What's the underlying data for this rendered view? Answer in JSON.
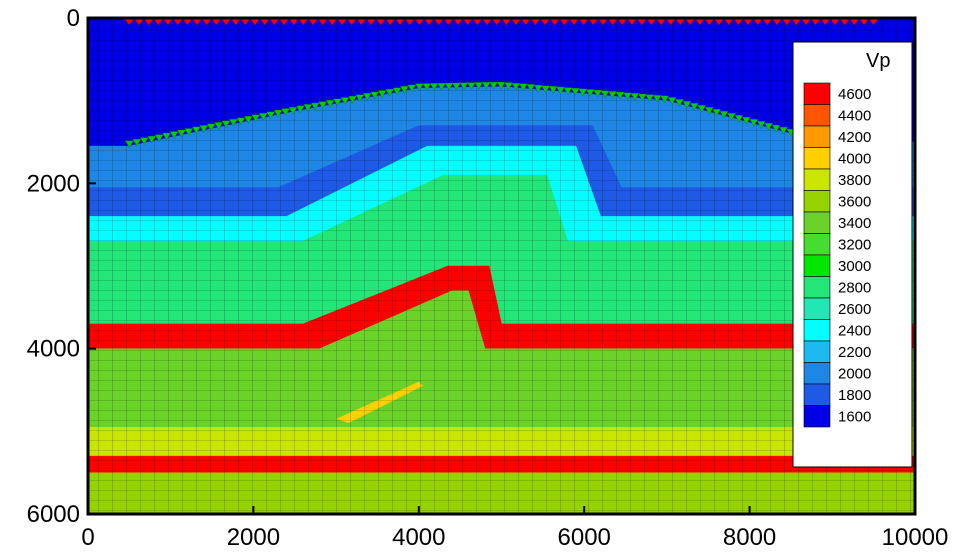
{
  "chart_data": {
    "type": "heatmap",
    "title": "",
    "xlabel": "",
    "ylabel": "",
    "xlim": [
      0,
      10000
    ],
    "ylim": [
      0,
      6000
    ],
    "y_inverted": true,
    "x_ticks": [
      0,
      2000,
      4000,
      6000,
      8000,
      10000
    ],
    "y_ticks": [
      0,
      2000,
      4000,
      6000
    ],
    "x_tick_labels": [
      "0",
      "2000",
      "4000",
      "6000",
      "8000",
      "10000"
    ],
    "y_tick_labels": [
      "0",
      "2000",
      "4000",
      "6000"
    ],
    "grid": "mesh",
    "legend": {
      "title": "Vp",
      "placement": "right",
      "levels": [
        {
          "label": "4600",
          "value": 4600,
          "color": "#ff0000"
        },
        {
          "label": "4400",
          "value": 4400,
          "color": "#ff5500"
        },
        {
          "label": "4200",
          "value": 4200,
          "color": "#ff9900"
        },
        {
          "label": "4000",
          "value": 4000,
          "color": "#ffd000"
        },
        {
          "label": "3800",
          "value": 3800,
          "color": "#c8e600"
        },
        {
          "label": "3600",
          "value": 3600,
          "color": "#96d200"
        },
        {
          "label": "3400",
          "value": 3400,
          "color": "#6ad228"
        },
        {
          "label": "3200",
          "value": 3200,
          "color": "#46dc32"
        },
        {
          "label": "3000",
          "value": 3000,
          "color": "#00e600"
        },
        {
          "label": "2800",
          "value": 2800,
          "color": "#22e678"
        },
        {
          "label": "2600",
          "value": 2600,
          "color": "#22e6b4"
        },
        {
          "label": "2400",
          "value": 2400,
          "color": "#00ffff"
        },
        {
          "label": "2200",
          "value": 2200,
          "color": "#1eb9f0"
        },
        {
          "label": "2000",
          "value": 2000,
          "color": "#1e87e6"
        },
        {
          "label": "1800",
          "value": 1800,
          "color": "#1e5ae6"
        },
        {
          "label": "1600",
          "value": 1600,
          "color": "#0000e6"
        }
      ]
    },
    "layers": [
      {
        "vp": 1600,
        "points": [
          [
            0,
            0
          ],
          [
            10000,
            0
          ],
          [
            10000,
            1500
          ],
          [
            8500,
            1400
          ],
          [
            7000,
            1000
          ],
          [
            5000,
            830
          ],
          [
            4000,
            850
          ],
          [
            2400,
            1150
          ],
          [
            500,
            1550
          ],
          [
            0,
            1550
          ]
        ]
      },
      {
        "vp": 2000,
        "points": [
          [
            0,
            1550
          ],
          [
            500,
            1550
          ],
          [
            2400,
            1150
          ],
          [
            4000,
            850
          ],
          [
            5000,
            830
          ],
          [
            7000,
            1000
          ],
          [
            8500,
            1400
          ],
          [
            10000,
            1500
          ],
          [
            10000,
            2050
          ],
          [
            6450,
            2050
          ],
          [
            6100,
            1300
          ],
          [
            4000,
            1300
          ],
          [
            2300,
            2050
          ],
          [
            0,
            2050
          ]
        ]
      },
      {
        "vp": 1800,
        "points": [
          [
            0,
            2050
          ],
          [
            2300,
            2050
          ],
          [
            4000,
            1300
          ],
          [
            6100,
            1300
          ],
          [
            6450,
            2050
          ],
          [
            10000,
            2050
          ],
          [
            10000,
            2400
          ],
          [
            6200,
            2400
          ],
          [
            5900,
            1550
          ],
          [
            4100,
            1550
          ],
          [
            2400,
            2400
          ],
          [
            0,
            2400
          ]
        ]
      },
      {
        "vp": 2400,
        "points": [
          [
            0,
            2400
          ],
          [
            2400,
            2400
          ],
          [
            4100,
            1550
          ],
          [
            5900,
            1550
          ],
          [
            6200,
            2400
          ],
          [
            10000,
            2400
          ],
          [
            10000,
            2700
          ],
          [
            5800,
            2700
          ],
          [
            5550,
            1900
          ],
          [
            4300,
            1900
          ],
          [
            2600,
            2700
          ],
          [
            0,
            2700
          ]
        ]
      },
      {
        "vp": 2800,
        "points": [
          [
            0,
            2700
          ],
          [
            2600,
            2700
          ],
          [
            4300,
            1900
          ],
          [
            5550,
            1900
          ],
          [
            5800,
            2700
          ],
          [
            10000,
            2700
          ],
          [
            10000,
            3700
          ],
          [
            5000,
            3700
          ],
          [
            4850,
            3000
          ],
          [
            4350,
            3000
          ],
          [
            2600,
            3700
          ],
          [
            0,
            3700
          ]
        ]
      },
      {
        "vp": 4600,
        "points": [
          [
            0,
            3700
          ],
          [
            2600,
            3700
          ],
          [
            4350,
            3000
          ],
          [
            4850,
            3000
          ],
          [
            5000,
            3700
          ],
          [
            10000,
            3700
          ],
          [
            10000,
            4000
          ],
          [
            4800,
            4000
          ],
          [
            4600,
            3300
          ],
          [
            4400,
            3300
          ],
          [
            2800,
            4000
          ],
          [
            0,
            4000
          ]
        ]
      },
      {
        "vp": 3400,
        "points": [
          [
            0,
            4000
          ],
          [
            2800,
            4000
          ],
          [
            4400,
            3300
          ],
          [
            4600,
            3300
          ],
          [
            4800,
            4000
          ],
          [
            10000,
            4000
          ],
          [
            10000,
            4950
          ],
          [
            0,
            4950
          ]
        ]
      },
      {
        "vp": 3800,
        "points": [
          [
            0,
            4950
          ],
          [
            10000,
            4950
          ],
          [
            10000,
            5300
          ],
          [
            0,
            5300
          ]
        ]
      },
      {
        "vp": 4600,
        "points": [
          [
            0,
            5300
          ],
          [
            10000,
            5300
          ],
          [
            10000,
            5500
          ],
          [
            0,
            5500
          ]
        ]
      },
      {
        "vp": 3600,
        "points": [
          [
            0,
            5500
          ],
          [
            10000,
            5500
          ],
          [
            10000,
            6000
          ],
          [
            0,
            6000
          ]
        ]
      }
    ],
    "thin_lens": {
      "vp": 4000,
      "points": [
        [
          3000,
          4850
        ],
        [
          4000,
          4400
        ],
        [
          4050,
          4450
        ],
        [
          3150,
          4900
        ]
      ]
    },
    "sources": {
      "color": "#ff0000",
      "y": 0,
      "x_start": 500,
      "x_end": 9500,
      "count": 78
    },
    "receivers": {
      "color": "#00cc00",
      "line": [
        [
          500,
          1520
        ],
        [
          2400,
          1130
        ],
        [
          4000,
          830
        ],
        [
          5000,
          810
        ],
        [
          7000,
          980
        ],
        [
          8500,
          1380
        ]
      ],
      "count": 90
    }
  }
}
